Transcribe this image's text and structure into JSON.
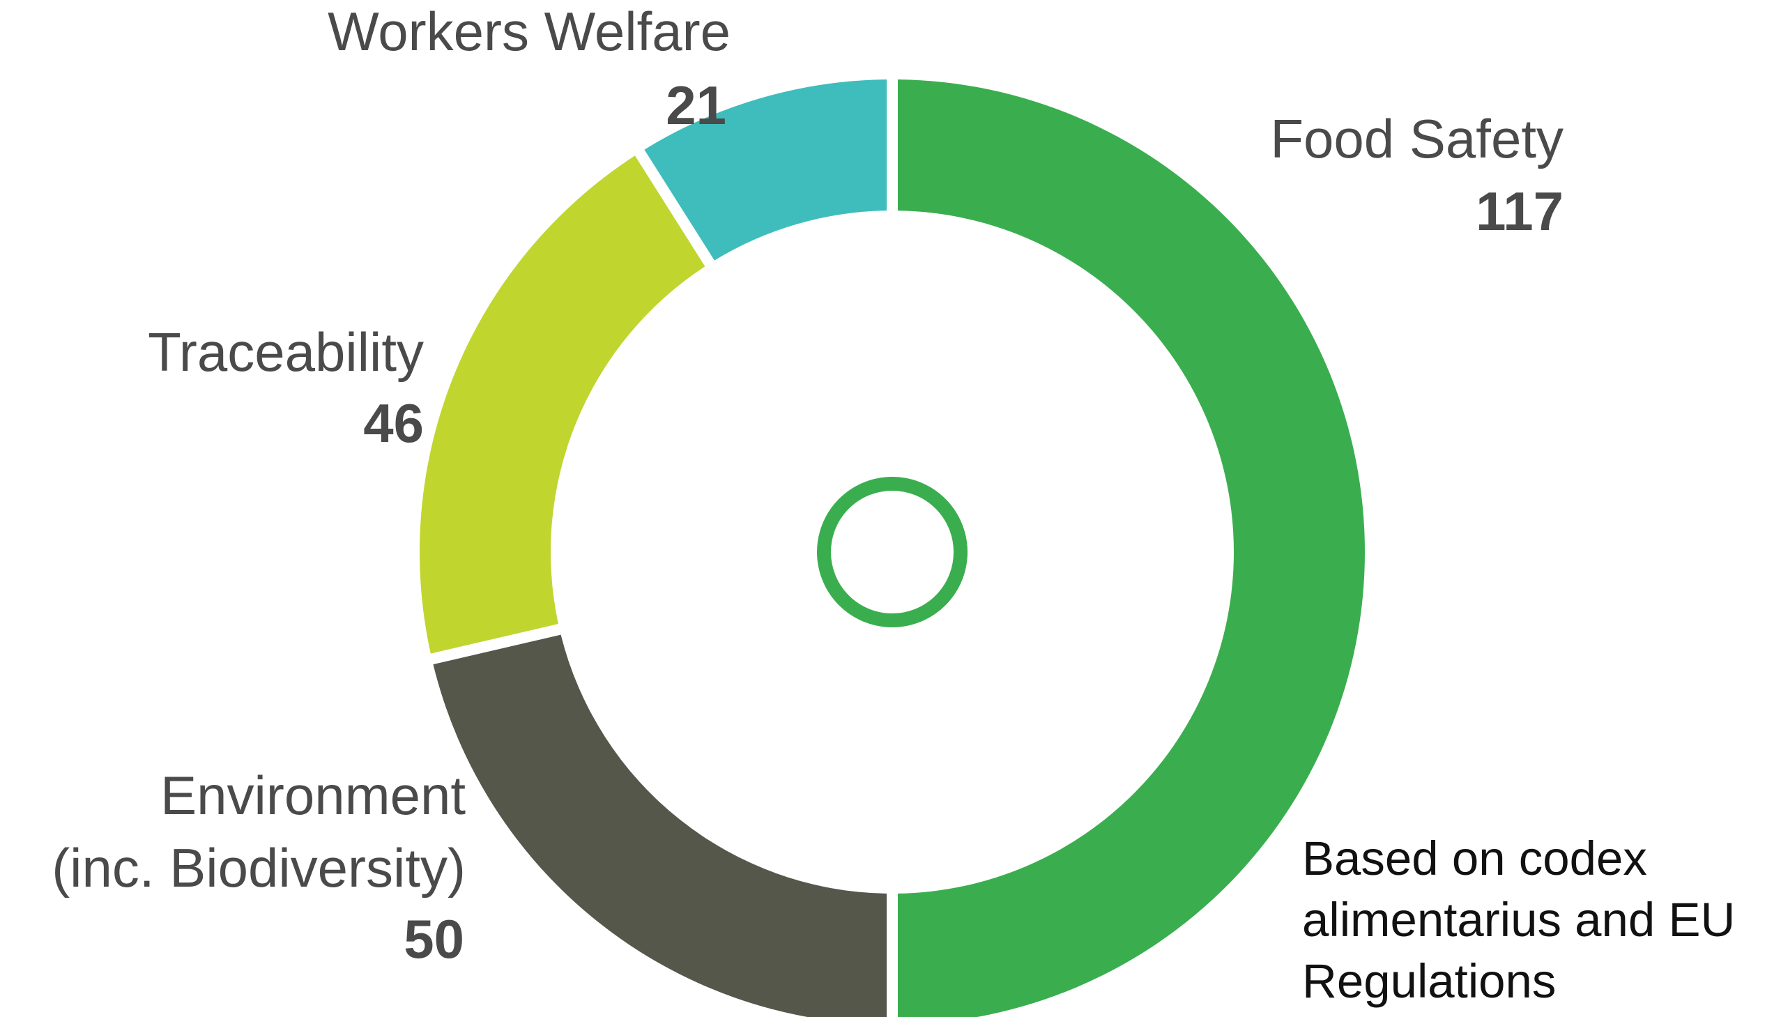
{
  "chart_data": {
    "type": "pie",
    "subtype": "donut",
    "slices": [
      {
        "name": "Food Safety",
        "value": 117,
        "color": "#3aae4e"
      },
      {
        "name": "Environment",
        "name_line2": "(inc. Biodiversity)",
        "value": 50,
        "color": "#55574a"
      },
      {
        "name": "Traceability",
        "value": 46,
        "color": "#c1d52f"
      },
      {
        "name": "Workers Welfare",
        "value": 21,
        "color": "#3fbdbd"
      }
    ],
    "start_angle_deg": 0,
    "direction": "clockwise",
    "center_marker": {
      "shape": "ring",
      "color": "#3aae4e"
    },
    "legend": "none"
  },
  "annotation": {
    "lines": [
      "Based on codex",
      "alimentarius and EU",
      "Regulations"
    ]
  }
}
